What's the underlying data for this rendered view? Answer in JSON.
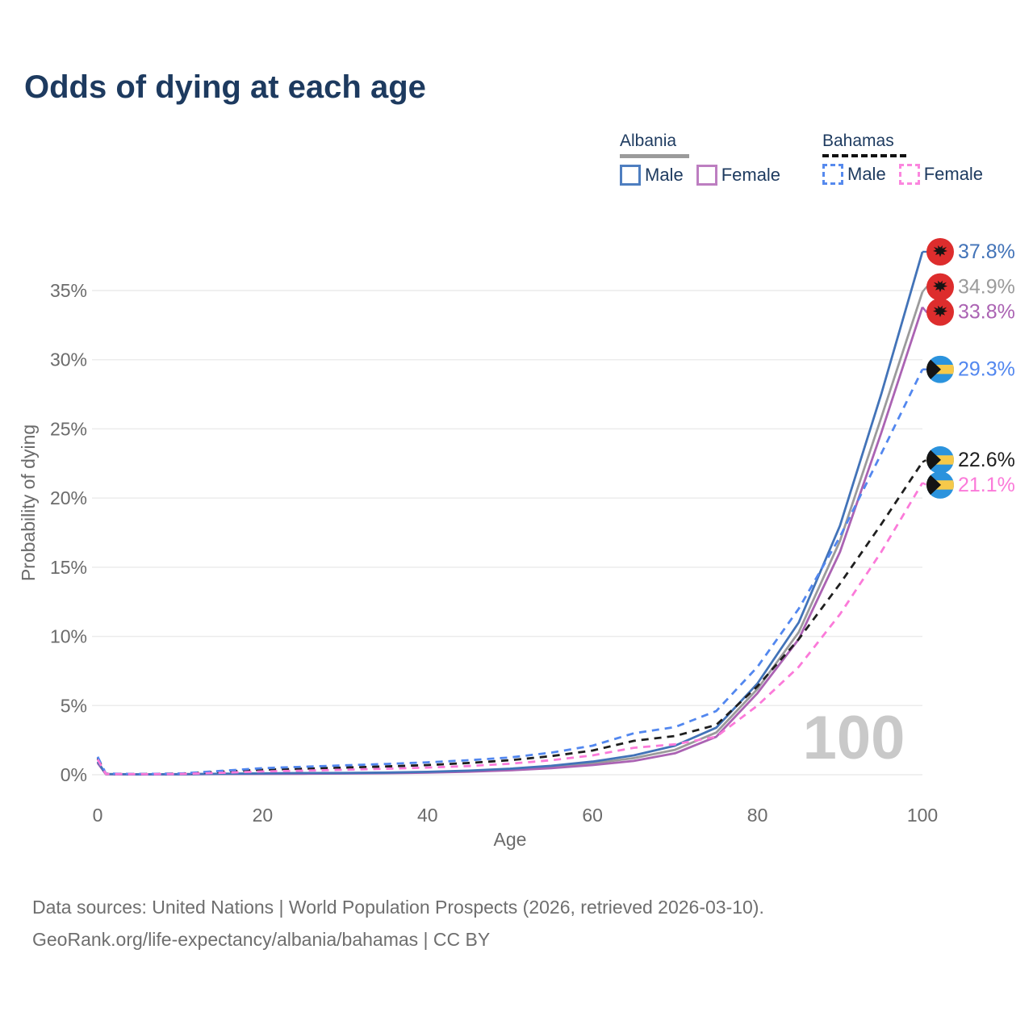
{
  "header": {
    "title": "Odds of dying at each age"
  },
  "legend": {
    "groups": [
      {
        "country": "Albania",
        "line_style": "solid",
        "underline_color": "#9b9b9b",
        "items": [
          {
            "label": "Male",
            "color": "#4e7ec0"
          },
          {
            "label": "Female",
            "color": "#bd7ec1"
          }
        ]
      },
      {
        "country": "Bahamas",
        "line_style": "dashed",
        "underline_color": "#111111",
        "items": [
          {
            "label": "Male",
            "color": "#568aee"
          },
          {
            "label": "Female",
            "color": "#fb86de"
          }
        ]
      }
    ]
  },
  "chart_data": {
    "type": "line",
    "title": "Odds of dying at each age",
    "xlabel": "Age",
    "ylabel": "Probability of dying",
    "xlim": [
      0,
      100
    ],
    "ylim": [
      0,
      38.5
    ],
    "grid": "horizontal",
    "legend_position": "top-right",
    "watermark": "100",
    "x_ticks": [
      {
        "v": 0,
        "label": "0"
      },
      {
        "v": 20,
        "label": "20"
      },
      {
        "v": 40,
        "label": "40"
      },
      {
        "v": 60,
        "label": "60"
      },
      {
        "v": 80,
        "label": "80"
      },
      {
        "v": 100,
        "label": "100"
      }
    ],
    "y_ticks": [
      {
        "v": 0,
        "label": "0%"
      },
      {
        "v": 5,
        "label": "5%"
      },
      {
        "v": 10,
        "label": "10%"
      },
      {
        "v": 15,
        "label": "15%"
      },
      {
        "v": 20,
        "label": "20%"
      },
      {
        "v": 25,
        "label": "25%"
      },
      {
        "v": 30,
        "label": "30%"
      },
      {
        "v": 35,
        "label": "35%"
      }
    ],
    "x": [
      0,
      1,
      5,
      10,
      15,
      20,
      25,
      30,
      35,
      40,
      45,
      50,
      55,
      60,
      65,
      70,
      75,
      80,
      85,
      90,
      95,
      100
    ],
    "series": [
      {
        "name": "Albania Both sexes",
        "country": "Albania",
        "sex": "Both",
        "style": "solid",
        "color": "#9b9b9b",
        "end_value": 34.9,
        "end_label": "34.9%",
        "flag": "albania",
        "values": [
          0.9,
          0.045,
          0.027,
          0.036,
          0.06,
          0.08,
          0.1,
          0.11,
          0.14,
          0.18,
          0.26,
          0.38,
          0.56,
          0.82,
          1.2,
          1.8,
          3.05,
          6.2,
          10.3,
          16.9,
          25.8,
          34.9
        ]
      },
      {
        "name": "Albania Female",
        "country": "Albania",
        "sex": "Female",
        "style": "solid",
        "color": "#ab63b3",
        "end_value": 33.8,
        "end_label": "33.8%",
        "flag": "albania",
        "values": [
          0.85,
          0.04,
          0.025,
          0.03,
          0.05,
          0.06,
          0.07,
          0.09,
          0.11,
          0.15,
          0.22,
          0.32,
          0.48,
          0.7,
          1.0,
          1.55,
          2.75,
          5.9,
          9.8,
          16.1,
          24.7,
          33.8
        ]
      },
      {
        "name": "Albania Male",
        "country": "Albania",
        "sex": "Male",
        "style": "solid",
        "color": "#4273b8",
        "end_value": 37.8,
        "end_label": "37.8%",
        "flag": "albania",
        "values": [
          0.95,
          0.05,
          0.03,
          0.04,
          0.07,
          0.1,
          0.12,
          0.13,
          0.16,
          0.21,
          0.3,
          0.44,
          0.65,
          0.95,
          1.4,
          2.1,
          3.4,
          6.6,
          11.0,
          18.0,
          27.5,
          37.8
        ]
      },
      {
        "name": "Bahamas Both sexes",
        "country": "Bahamas",
        "sex": "Both",
        "style": "dashed",
        "color": "#1f1f1f",
        "end_value": 22.6,
        "end_label": "22.6%",
        "flag": "bahamas",
        "values": [
          1.2,
          0.07,
          0.045,
          0.08,
          0.22,
          0.36,
          0.44,
          0.52,
          0.6,
          0.7,
          0.85,
          1.05,
          1.35,
          1.75,
          2.45,
          2.8,
          3.6,
          6.4,
          9.8,
          13.8,
          18.1,
          22.6
        ]
      },
      {
        "name": "Bahamas Male",
        "country": "Bahamas",
        "sex": "Male",
        "style": "dashed",
        "color": "#5287ef",
        "end_value": 29.3,
        "end_label": "29.3%",
        "flag": "bahamas",
        "values": [
          1.3,
          0.08,
          0.05,
          0.09,
          0.28,
          0.48,
          0.58,
          0.68,
          0.78,
          0.9,
          1.05,
          1.25,
          1.6,
          2.1,
          3.0,
          3.45,
          4.6,
          7.8,
          12.0,
          17.2,
          23.2,
          29.3
        ]
      },
      {
        "name": "Bahamas Female",
        "country": "Bahamas",
        "sex": "Female",
        "style": "dashed",
        "color": "#fb7ad9",
        "end_value": 21.1,
        "end_label": "21.1%",
        "flag": "bahamas",
        "values": [
          1.1,
          0.06,
          0.04,
          0.06,
          0.14,
          0.24,
          0.3,
          0.36,
          0.43,
          0.52,
          0.63,
          0.8,
          1.05,
          1.4,
          1.95,
          2.2,
          2.75,
          5.0,
          7.8,
          11.6,
          16.1,
          21.1
        ]
      }
    ],
    "flag_colors": {
      "albania_red": "#dd2d2d",
      "albania_eagle": "#141414",
      "bahamas_blue": "#2b93dd",
      "bahamas_gold": "#f6c94a",
      "bahamas_black": "#141414"
    },
    "axis_text_color": "#6b6b6b",
    "grid_color": "#ececec",
    "watermark_color": "#c9c9c9"
  },
  "footer": {
    "line1": "Data sources: United Nations | World Population Prospects (2026, retrieved 2026-03-10).",
    "line2": "GeoRank.org/life-expectancy/albania/bahamas | CC BY"
  }
}
